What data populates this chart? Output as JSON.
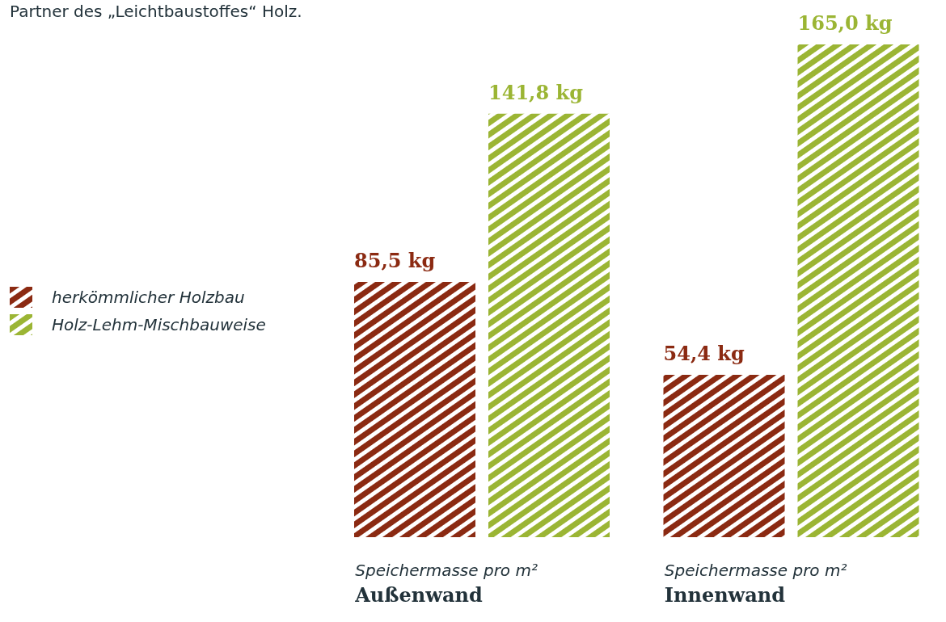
{
  "chart_data": {
    "type": "bar",
    "annotations": [
      "Partner des „Leichtbaustoffes“ Holz."
    ],
    "categories": [
      "Speichermasse pro m²\nAußenwand",
      "Speichermasse pro m²\nInnenwand"
    ],
    "series": [
      {
        "name": "herkömmlicher Holzbau",
        "color": "#8b2a12",
        "values": [
          85.5,
          54.4
        ],
        "value_labels": [
          "85,5 kg",
          "54,4 kg"
        ]
      },
      {
        "name": "Holz-Lehm-Mischbauweise",
        "color": "#9bb534",
        "values": [
          141.8,
          165.0
        ],
        "value_labels": [
          "141,8 kg",
          "165,0 kg"
        ]
      }
    ],
    "legend": "left",
    "grid": false
  }
}
